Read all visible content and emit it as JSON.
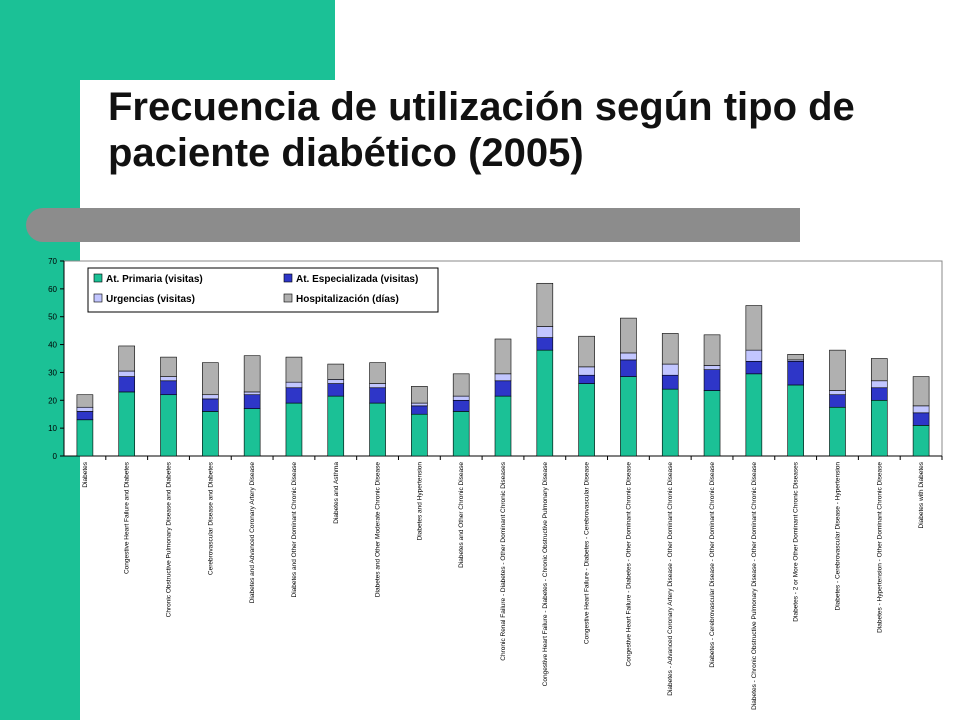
{
  "slide": {
    "title": "Frecuencia de utilización según tipo de paciente diabético (2005)",
    "colors": {
      "accent": "#1bc196",
      "rule": "#8c8c8c"
    }
  },
  "chart_data": {
    "type": "bar",
    "stacked": true,
    "ylim": [
      0,
      70
    ],
    "yticks": [
      0,
      10,
      20,
      30,
      40,
      50,
      60,
      70
    ],
    "grid": false,
    "legend_position": "top-left",
    "categories": [
      "Diabetes",
      "Congestive Heart Failure and Diabetes",
      "Chronic Obstructive Pulmonary Disease and Diabetes",
      "Cerebrovascular Disease and Diabetes",
      "Diabetes and Advanced Coronary Artery Disease",
      "Diabetes and Other Dominant Chronic Disease",
      "Diabetes and Asthma",
      "Diabetes and Other Moderate Chronic Disease",
      "Diabetes and Hypertension",
      "Diabetes and Other Chronic Disease",
      "Chronic Renal Failure - Diabetes - Other Dominant Chronic Diseases",
      "Congestive Heart Failure - Diabetes - Chronic Obstructive Pulmonary Disease",
      "Congestive Heart Failure - Diabetes - Cerebrovascular Disease",
      "Congestive Heart Failure - Diabetes - Other Dominant Chronic Disease",
      "Diabetes - Advanced Coronary Artery Disease - Other Dominant Chronic Disease",
      "Diabetes - Cerebrovascular Disease - Other Dominant Chronic Disease",
      "Diabetes - Chronic Obstructive Pulmonary Disease - Other Dominant Chronic Disease",
      "Diabetes - 2 or More Other Dominant Chronic Diseases",
      "Diabetes - Cerebrovascular Disease - Hypertension",
      "Diabetes - Hypertension - Other Dominant Chronic Disease",
      "Diabetes with Diabetes"
    ],
    "series": [
      {
        "name": "At. Primaria (visitas)",
        "color": "#1bc196",
        "values": [
          13,
          23,
          22,
          16,
          17,
          19,
          21.5,
          19,
          15,
          16,
          21.5,
          38,
          26,
          28.5,
          24,
          23.5,
          29.5,
          25.5,
          17.5,
          20,
          11
        ]
      },
      {
        "name": "At. Especializada (visitas)",
        "color": "#2e36c8",
        "values": [
          3,
          5.5,
          5,
          4.5,
          5,
          5.5,
          4.5,
          5.5,
          3,
          4,
          5.5,
          4.5,
          3,
          6,
          5,
          7.5,
          4.5,
          8.5,
          4.5,
          4.5,
          4.5
        ]
      },
      {
        "name": "Urgencias (visitas)",
        "color": "#c2c6ff",
        "values": [
          1.5,
          2,
          1.5,
          1.5,
          1,
          2,
          1.5,
          1.5,
          1,
          1.5,
          2.5,
          4,
          3,
          2.5,
          4,
          1.5,
          4,
          0.5,
          1.5,
          2.5,
          2.5
        ]
      },
      {
        "name": "Hospitalización (días)",
        "color": "#b0b0b0",
        "values": [
          4.5,
          9,
          7,
          11.5,
          13,
          9,
          5.5,
          7.5,
          6,
          8,
          12.5,
          15.5,
          11,
          12.5,
          11,
          11,
          16,
          2,
          14.5,
          8,
          10.5
        ]
      }
    ]
  }
}
